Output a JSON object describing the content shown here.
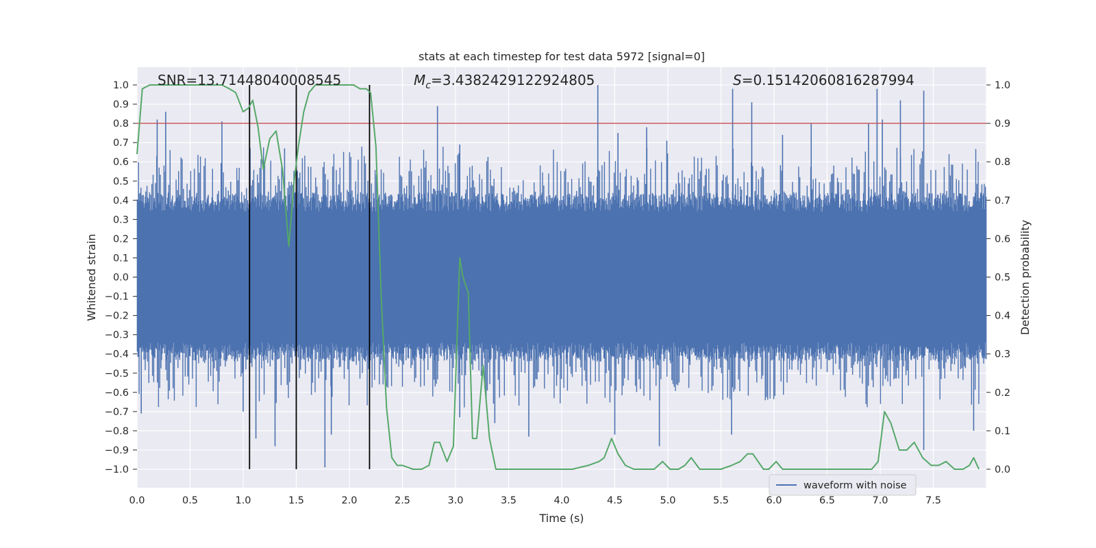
{
  "chart_data": {
    "type": "line",
    "title": "stats at each timestep for test data 5972 [signal=0]",
    "xlabel": "Time (s)",
    "ylabel": "Whitened strain",
    "y2label": "Detection probability",
    "xlim": [
      0,
      8
    ],
    "ylim": [
      -1.1,
      1.1
    ],
    "y2lim": [
      -0.05,
      1.05
    ],
    "grid": true,
    "x_ticks": [
      "0.0",
      "0.5",
      "1.0",
      "1.5",
      "2.0",
      "2.5",
      "3.0",
      "3.5",
      "4.0",
      "4.5",
      "5.0",
      "5.5",
      "6.0",
      "6.5",
      "7.0",
      "7.5"
    ],
    "y_ticks": [
      "1.0",
      "0.9",
      "0.8",
      "0.7",
      "0.6",
      "0.5",
      "0.4",
      "0.3",
      "0.2",
      "0.1",
      "0.0",
      "−0.1",
      "−0.2",
      "−0.3",
      "−0.4",
      "−0.5",
      "−0.6",
      "−0.7",
      "−0.8",
      "−0.9",
      "−1.0"
    ],
    "y2_ticks": [
      "1.0",
      "0.9",
      "0.8",
      "0.7",
      "0.6",
      "0.5",
      "0.4",
      "0.3",
      "0.2",
      "0.1",
      "0.0"
    ],
    "annotations": {
      "snr": "SNR=13.71448040008545",
      "mc_symbol": "M",
      "mc_sub": "c",
      "mc_value": "=3.4382429122924805",
      "s_symbol": "S",
      "s_value": "=0.15142060816287994"
    },
    "threshold": {
      "y2": 0.9,
      "color": "#c44e52"
    },
    "vertical_markers": {
      "x": [
        1.06,
        1.5,
        2.19
      ],
      "ymin": -1.0,
      "ymax": 1.0,
      "color": "#000000"
    },
    "series": [
      {
        "name": "waveform with noise",
        "axis": "left",
        "color": "#4c72b0",
        "rendering": "dense noise trace, envelope approx ±0.45 with spikes",
        "spikes_top": [
          [
            0.19,
            0.82
          ],
          [
            0.27,
            0.86
          ],
          [
            0.8,
            0.81
          ],
          [
            1.39,
            0.67
          ],
          [
            2.83,
            0.89
          ],
          [
            3.04,
            0.69
          ],
          [
            4.34,
            1.0
          ],
          [
            4.53,
            0.75
          ],
          [
            4.8,
            0.78
          ],
          [
            4.99,
            0.71
          ],
          [
            5.61,
            0.98
          ],
          [
            5.79,
            0.91
          ],
          [
            6.08,
            0.74
          ],
          [
            6.35,
            0.8
          ],
          [
            6.89,
            0.8
          ],
          [
            6.97,
            0.98
          ],
          [
            7.02,
            0.82
          ],
          [
            7.19,
            0.92
          ],
          [
            7.41,
            0.97
          ]
        ],
        "spikes_bottom": [
          [
            0.04,
            -0.71
          ],
          [
            1.0,
            -0.7
          ],
          [
            1.12,
            -0.84
          ],
          [
            1.3,
            -0.88
          ],
          [
            1.77,
            -0.99
          ],
          [
            1.83,
            -0.82
          ],
          [
            3.04,
            -0.73
          ],
          [
            3.37,
            -0.76
          ],
          [
            3.69,
            -0.83
          ],
          [
            4.5,
            -0.82
          ],
          [
            4.92,
            -0.88
          ],
          [
            5.6,
            -0.82
          ],
          [
            7.41,
            -0.9
          ],
          [
            7.88,
            -0.8
          ]
        ]
      },
      {
        "name": "detection probability",
        "axis": "right",
        "color": "#55a868",
        "x": [
          0.0,
          0.05,
          0.12,
          0.2,
          0.3,
          0.4,
          0.5,
          0.6,
          0.7,
          0.8,
          0.87,
          0.93,
          1.0,
          1.05,
          1.09,
          1.14,
          1.19,
          1.25,
          1.31,
          1.37,
          1.43,
          1.48,
          1.52,
          1.57,
          1.62,
          1.68,
          1.74,
          1.8,
          1.86,
          1.92,
          1.98,
          2.04,
          2.1,
          2.16,
          2.2,
          2.25,
          2.3,
          2.35,
          2.4,
          2.45,
          2.5,
          2.6,
          2.68,
          2.75,
          2.8,
          2.85,
          2.92,
          2.98,
          3.04,
          3.07,
          3.12,
          3.16,
          3.2,
          3.26,
          3.32,
          3.38,
          3.44,
          3.52,
          3.62,
          3.72,
          3.82,
          3.95,
          4.1,
          4.25,
          4.35,
          4.4,
          4.47,
          4.53,
          4.6,
          4.68,
          4.78,
          4.87,
          4.95,
          5.02,
          5.1,
          5.16,
          5.22,
          5.3,
          5.4,
          5.5,
          5.6,
          5.68,
          5.75,
          5.8,
          5.85,
          5.9,
          5.95,
          6.02,
          6.08,
          6.15,
          6.25,
          6.4,
          6.6,
          6.8,
          6.92,
          6.98,
          7.04,
          7.1,
          7.18,
          7.25,
          7.32,
          7.4,
          7.48,
          7.55,
          7.62,
          7.7,
          7.78,
          7.84,
          7.88,
          7.93
        ],
        "values": [
          0.82,
          0.99,
          1.0,
          1.0,
          1.0,
          1.0,
          1.0,
          1.0,
          1.0,
          1.0,
          0.99,
          0.98,
          0.93,
          0.94,
          0.96,
          0.89,
          0.78,
          0.86,
          0.88,
          0.78,
          0.58,
          0.75,
          0.84,
          0.93,
          0.98,
          1.0,
          1.0,
          1.0,
          1.0,
          1.0,
          1.0,
          1.0,
          0.99,
          0.99,
          0.98,
          0.84,
          0.45,
          0.16,
          0.03,
          0.01,
          0.01,
          0.0,
          0.0,
          0.01,
          0.07,
          0.07,
          0.02,
          0.06,
          0.55,
          0.5,
          0.46,
          0.08,
          0.08,
          0.27,
          0.08,
          0.0,
          0.0,
          0.0,
          0.0,
          0.0,
          0.0,
          0.0,
          0.0,
          0.01,
          0.02,
          0.03,
          0.08,
          0.04,
          0.01,
          0.0,
          0.0,
          0.0,
          0.02,
          0.0,
          0.0,
          0.01,
          0.03,
          0.0,
          0.0,
          0.0,
          0.01,
          0.02,
          0.04,
          0.04,
          0.02,
          0.0,
          0.0,
          0.02,
          0.0,
          0.0,
          0.0,
          0.0,
          0.0,
          0.0,
          0.0,
          0.02,
          0.15,
          0.12,
          0.05,
          0.05,
          0.07,
          0.03,
          0.01,
          0.01,
          0.02,
          0.0,
          0.0,
          0.01,
          0.03,
          0.0
        ]
      }
    ],
    "legend": {
      "placement": "lower-right",
      "entries": [
        "waveform with noise"
      ]
    }
  }
}
